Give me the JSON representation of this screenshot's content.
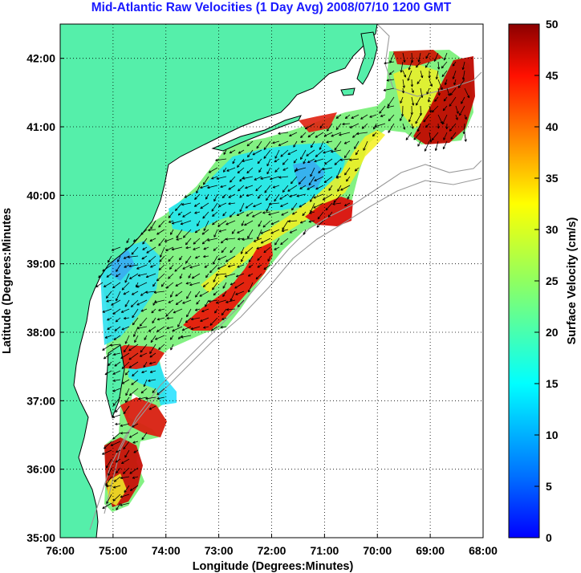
{
  "title": "Mid-Atlantic Raw Velocities (1 Day Avg) 2008/07/10 1200 GMT",
  "xlabel": "Longitude (Degrees:Minutes)",
  "ylabel": "Latitude (Degrees:Minutes",
  "colorbar": {
    "label": "Surface Velocity (cm/s)",
    "range": [
      0,
      50
    ],
    "tick_values": [
      0,
      5,
      10,
      15,
      20,
      25,
      30,
      35,
      40,
      45,
      50
    ],
    "tick_labels": [
      "0",
      "5",
      "10",
      "15",
      "20",
      "25",
      "30",
      "35",
      "40",
      "45",
      "50"
    ],
    "colormap": "jet"
  },
  "map": {
    "lon_range": [
      -76,
      -68
    ],
    "lat_range": [
      35,
      42.5
    ],
    "grid": "dotted",
    "land_color": "#55efaa",
    "coast_color": "#000000",
    "bathymetry_color": "#9a9a9a",
    "x_tick_values": [
      -76,
      -75,
      -74,
      -73,
      -72,
      -71,
      -70,
      -69,
      -68
    ],
    "x_tick_labels": [
      "76:00",
      "75:00",
      "74:00",
      "73:00",
      "72:00",
      "71:00",
      "70:00",
      "69:00",
      "68:00"
    ],
    "y_tick_values": [
      35,
      36,
      37,
      38,
      39,
      40,
      41,
      42
    ],
    "y_tick_labels": [
      "35:00",
      "36:00",
      "37:00",
      "38:00",
      "39:00",
      "40:00",
      "41:00",
      "42:00"
    ]
  }
}
